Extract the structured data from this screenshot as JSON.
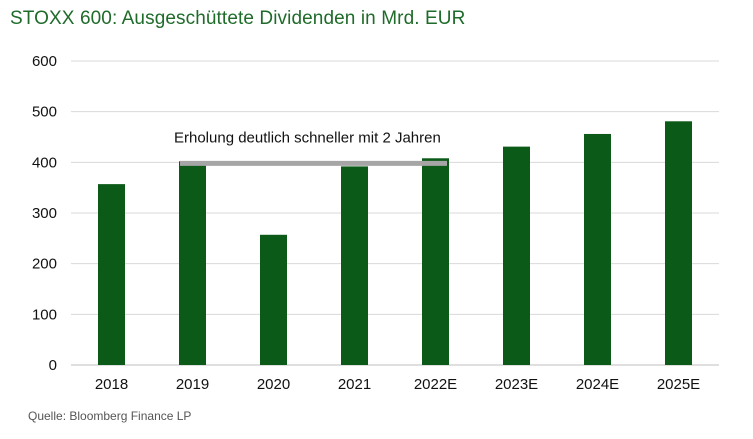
{
  "title": "STOXX 600: Ausgeschüttete Dividenden in Mrd. EUR",
  "source": "Quelle: Bloomberg Finance LP",
  "colors": {
    "title": "#1e6b2a",
    "bar": "#0b5a17",
    "grid": "#d9d9d9",
    "annotation_line": "#a6a6a6"
  },
  "chart_data": {
    "type": "bar",
    "title": "STOXX 600: Ausgeschüttete Dividenden in Mrd. EUR",
    "xlabel": "",
    "ylabel": "",
    "categories": [
      "2018",
      "2019",
      "2020",
      "2021",
      "2022E",
      "2023E",
      "2024E",
      "2025E"
    ],
    "values": [
      357,
      402,
      257,
      392,
      408,
      431,
      456,
      481
    ],
    "ylim": [
      0,
      600
    ],
    "yticks": [
      0,
      100,
      200,
      300,
      400,
      500,
      600
    ],
    "grid": true,
    "annotation": {
      "text": "Erholung deutlich schneller mit 2 Jahren",
      "from_category": "2019",
      "to_category": "2022E",
      "y": 398
    }
  }
}
